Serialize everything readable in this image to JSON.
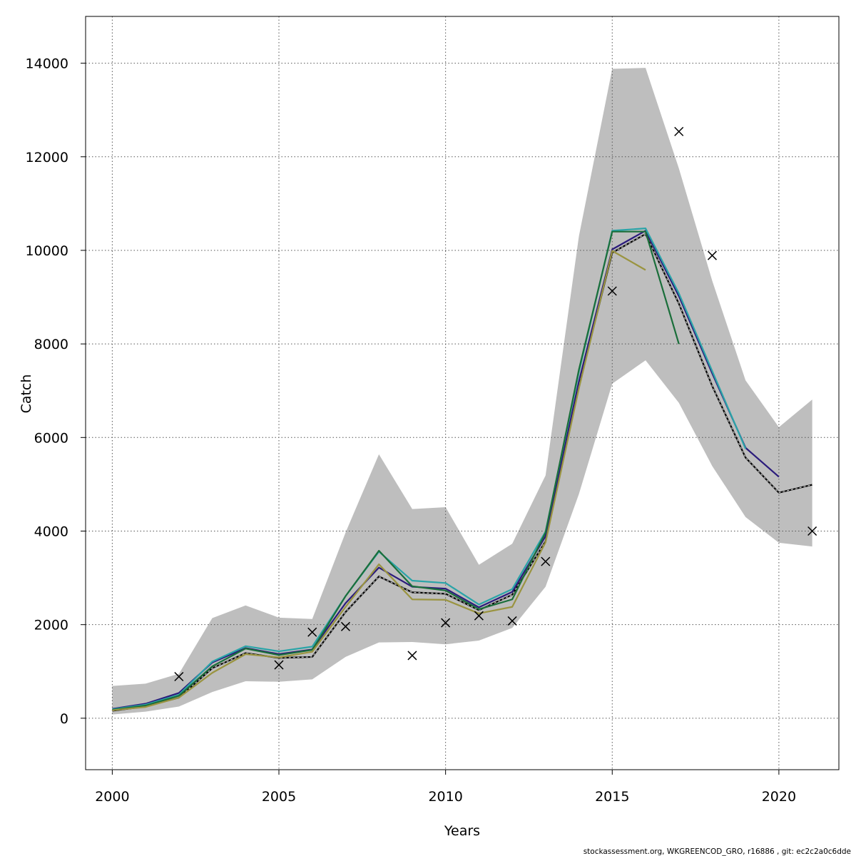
{
  "chart_data": {
    "type": "line",
    "title": "",
    "xlabel": "Years",
    "ylabel": "Catch",
    "xlim": [
      1999.2,
      2021.8
    ],
    "ylim": [
      -1100,
      15000
    ],
    "x_ticks": [
      2000,
      2005,
      2010,
      2015,
      2020
    ],
    "y_ticks": [
      0,
      2000,
      4000,
      6000,
      8000,
      10000,
      12000,
      14000
    ],
    "grid": true,
    "legend": "none",
    "footer": "stockassessment.org, WKGREENCOD_GRO, r16886 , git: ec2c2a0c6dde",
    "colors": {
      "band": "#bebebe",
      "grid": "#555555",
      "axis": "#000000"
    },
    "confidence_band": {
      "x": [
        2000,
        2001,
        2002,
        2003,
        2004,
        2005,
        2006,
        2007,
        2008,
        2009,
        2010,
        2011,
        2012,
        2013,
        2014,
        2015,
        2016,
        2017,
        2018,
        2019,
        2020,
        2021
      ],
      "upper": [
        690,
        740,
        950,
        2140,
        2410,
        2150,
        2120,
        3970,
        5640,
        4470,
        4510,
        3280,
        3730,
        5190,
        10300,
        13880,
        13900,
        11750,
        9350,
        7220,
        6220,
        6810
      ],
      "lower": [
        80,
        140,
        250,
        560,
        790,
        780,
        830,
        1310,
        1620,
        1630,
        1580,
        1660,
        1930,
        2810,
        4790,
        7150,
        7650,
        6740,
        5390,
        4300,
        3750,
        3670
      ]
    },
    "series": [
      {
        "color": "#000000",
        "dashed": true,
        "x": [
          2000,
          2001,
          2002,
          2003,
          2004,
          2005,
          2006,
          2007,
          2008,
          2009,
          2010,
          2011,
          2012,
          2013,
          2014,
          2015,
          2016,
          2017,
          2018,
          2019,
          2020,
          2021
        ],
        "values": [
          160,
          250,
          440,
          1070,
          1390,
          1290,
          1310,
          2270,
          3030,
          2690,
          2660,
          2310,
          2640,
          3780,
          7100,
          9950,
          10350,
          8860,
          7100,
          5570,
          4820,
          4990
        ]
      },
      {
        "color": "#2b1b7c",
        "x": [
          2000,
          2001,
          2002,
          2003,
          2004,
          2005,
          2006,
          2007,
          2008,
          2009,
          2010,
          2011,
          2012,
          2013,
          2014,
          2015,
          2016,
          2017,
          2018,
          2019,
          2020
        ],
        "values": [
          200,
          310,
          540,
          1190,
          1500,
          1370,
          1470,
          2460,
          3220,
          2810,
          2770,
          2370,
          2700,
          3890,
          7200,
          10020,
          10420,
          9020,
          7370,
          5780,
          5160
        ]
      },
      {
        "color": "#2aa4a8",
        "x": [
          2000,
          2001,
          2002,
          2003,
          2004,
          2005,
          2006,
          2007,
          2008,
          2009,
          2010,
          2011,
          2012,
          2013,
          2014,
          2015,
          2016,
          2017,
          2018,
          2019
        ],
        "values": [
          190,
          290,
          500,
          1210,
          1540,
          1430,
          1530,
          2610,
          3560,
          2940,
          2890,
          2430,
          2760,
          3990,
          7400,
          10420,
          10470,
          9080,
          7420,
          5760
        ]
      },
      {
        "color": "#1a6e3a",
        "x": [
          2000,
          2001,
          2002,
          2003,
          2004,
          2005,
          2006,
          2007,
          2008,
          2009,
          2010,
          2011,
          2012,
          2013,
          2014,
          2015,
          2016,
          2017
        ],
        "values": [
          180,
          270,
          480,
          1110,
          1490,
          1350,
          1460,
          2610,
          3580,
          2820,
          2730,
          2330,
          2540,
          3970,
          7450,
          10400,
          10400,
          8000
        ]
      },
      {
        "color": "#9a9440",
        "x": [
          2000,
          2001,
          2002,
          2003,
          2004,
          2005,
          2006,
          2007,
          2008,
          2009,
          2010,
          2011,
          2012,
          2013,
          2014,
          2015,
          2016
        ],
        "values": [
          170,
          240,
          440,
          970,
          1370,
          1300,
          1420,
          2380,
          3290,
          2540,
          2530,
          2240,
          2380,
          3760,
          7050,
          9990,
          9580
        ]
      }
    ],
    "observations": {
      "marker": "x",
      "x": [
        2002,
        2005,
        2006,
        2007,
        2009,
        2010,
        2011,
        2012,
        2013,
        2015,
        2017,
        2018,
        2021
      ],
      "values": [
        890,
        1140,
        1840,
        1960,
        1340,
        2040,
        2190,
        2080,
        3350,
        9130,
        12540,
        9890,
        4000
      ]
    }
  }
}
